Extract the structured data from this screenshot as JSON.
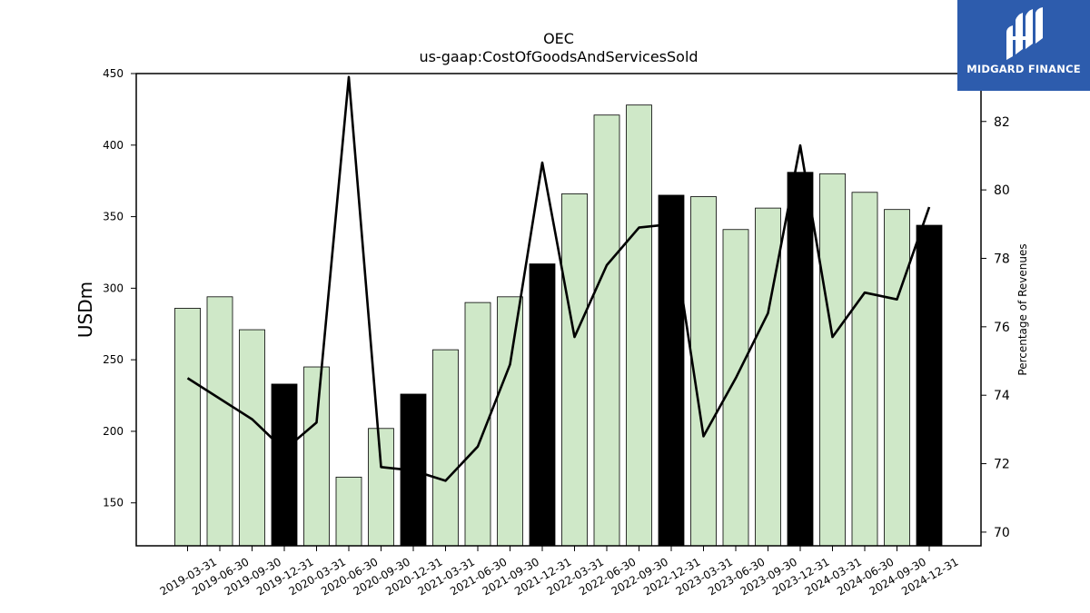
{
  "chart_data": {
    "type": "bar",
    "title": "OEC",
    "subtitle": "us-gaap:CostOfGoodsAndServicesSold",
    "ylabel": "USDm",
    "y2label": "Percentage of Revenues",
    "categories": [
      "2019-03-31",
      "2019-06-30",
      "2019-09-30",
      "2019-12-31",
      "2020-03-31",
      "2020-06-30",
      "2020-09-30",
      "2020-12-31",
      "2021-03-31",
      "2021-06-30",
      "2021-09-30",
      "2021-12-31",
      "2022-03-31",
      "2022-06-30",
      "2022-09-30",
      "2022-12-31",
      "2023-03-31",
      "2023-06-30",
      "2023-09-30",
      "2023-12-31",
      "2024-03-31",
      "2024-06-30",
      "2024-09-30",
      "2024-12-31"
    ],
    "series": [
      {
        "kind": "bar",
        "values": [
          286,
          294,
          271,
          233,
          245,
          168,
          202,
          226,
          257,
          290,
          294,
          317,
          366,
          421,
          428,
          365,
          364,
          341,
          356,
          381,
          380,
          367,
          355,
          344
        ],
        "highlight": [
          false,
          false,
          false,
          true,
          false,
          false,
          false,
          true,
          false,
          false,
          false,
          true,
          false,
          false,
          false,
          true,
          false,
          false,
          false,
          true,
          false,
          false,
          false,
          true
        ]
      },
      {
        "kind": "line",
        "axis": "right",
        "values": [
          74.5,
          73.9,
          73.3,
          72.4,
          73.2,
          83.3,
          71.9,
          71.8,
          71.5,
          72.5,
          74.9,
          80.8,
          75.7,
          77.8,
          78.9,
          79.0,
          72.8,
          74.5,
          76.4,
          81.3,
          75.7,
          77.0,
          76.8,
          79.5
        ]
      }
    ],
    "ylim": [
      120,
      450
    ],
    "yticks": [
      150,
      200,
      250,
      300,
      350,
      400,
      450
    ],
    "y2lim": [
      69.6,
      83.4
    ],
    "y2ticks": [
      70,
      72,
      74,
      76,
      78,
      80,
      82
    ],
    "grid": false,
    "colors": {
      "bar": "#cfe8c8",
      "highlight_bar": "#000000",
      "line": "#000000"
    }
  },
  "logo": {
    "text": "MIDGARD FINANCE"
  }
}
